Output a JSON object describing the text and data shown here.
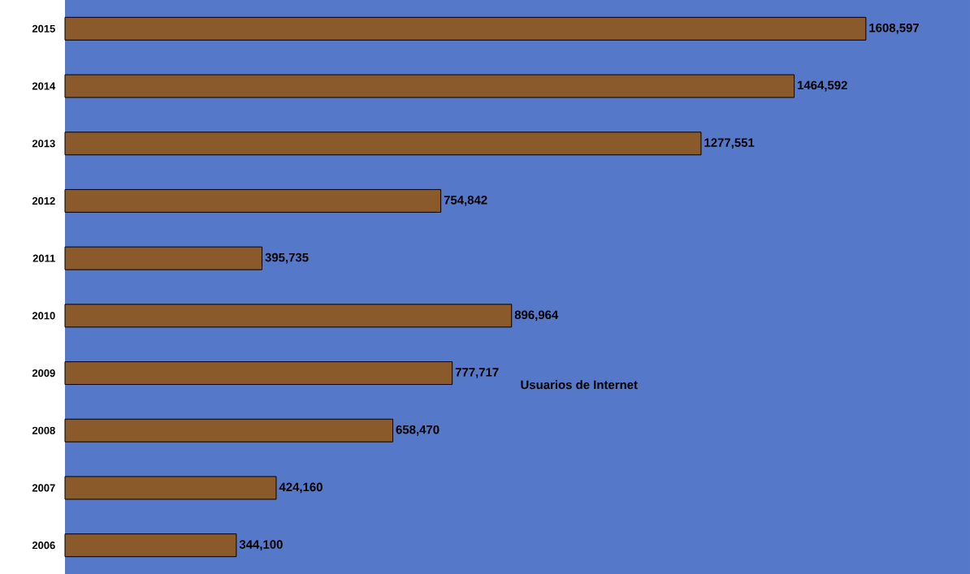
{
  "chart_data": {
    "type": "bar",
    "orientation": "horizontal",
    "categories": [
      "2015",
      "2014",
      "2013",
      "2012",
      "2011",
      "2010",
      "2009",
      "2008",
      "2007",
      "2006"
    ],
    "values": [
      1608597,
      1464592,
      1277551,
      754842,
      395735,
      896964,
      777717,
      658470,
      424160,
      344100
    ],
    "value_labels": [
      "1608,597",
      "1464,592",
      "1277,551",
      "754,842",
      "395,735",
      "896,964",
      "777,717",
      "658,470",
      "424,160",
      "344,100"
    ],
    "color": "#8b5a2b",
    "annotations": [
      "Usuarios de Internet"
    ]
  }
}
